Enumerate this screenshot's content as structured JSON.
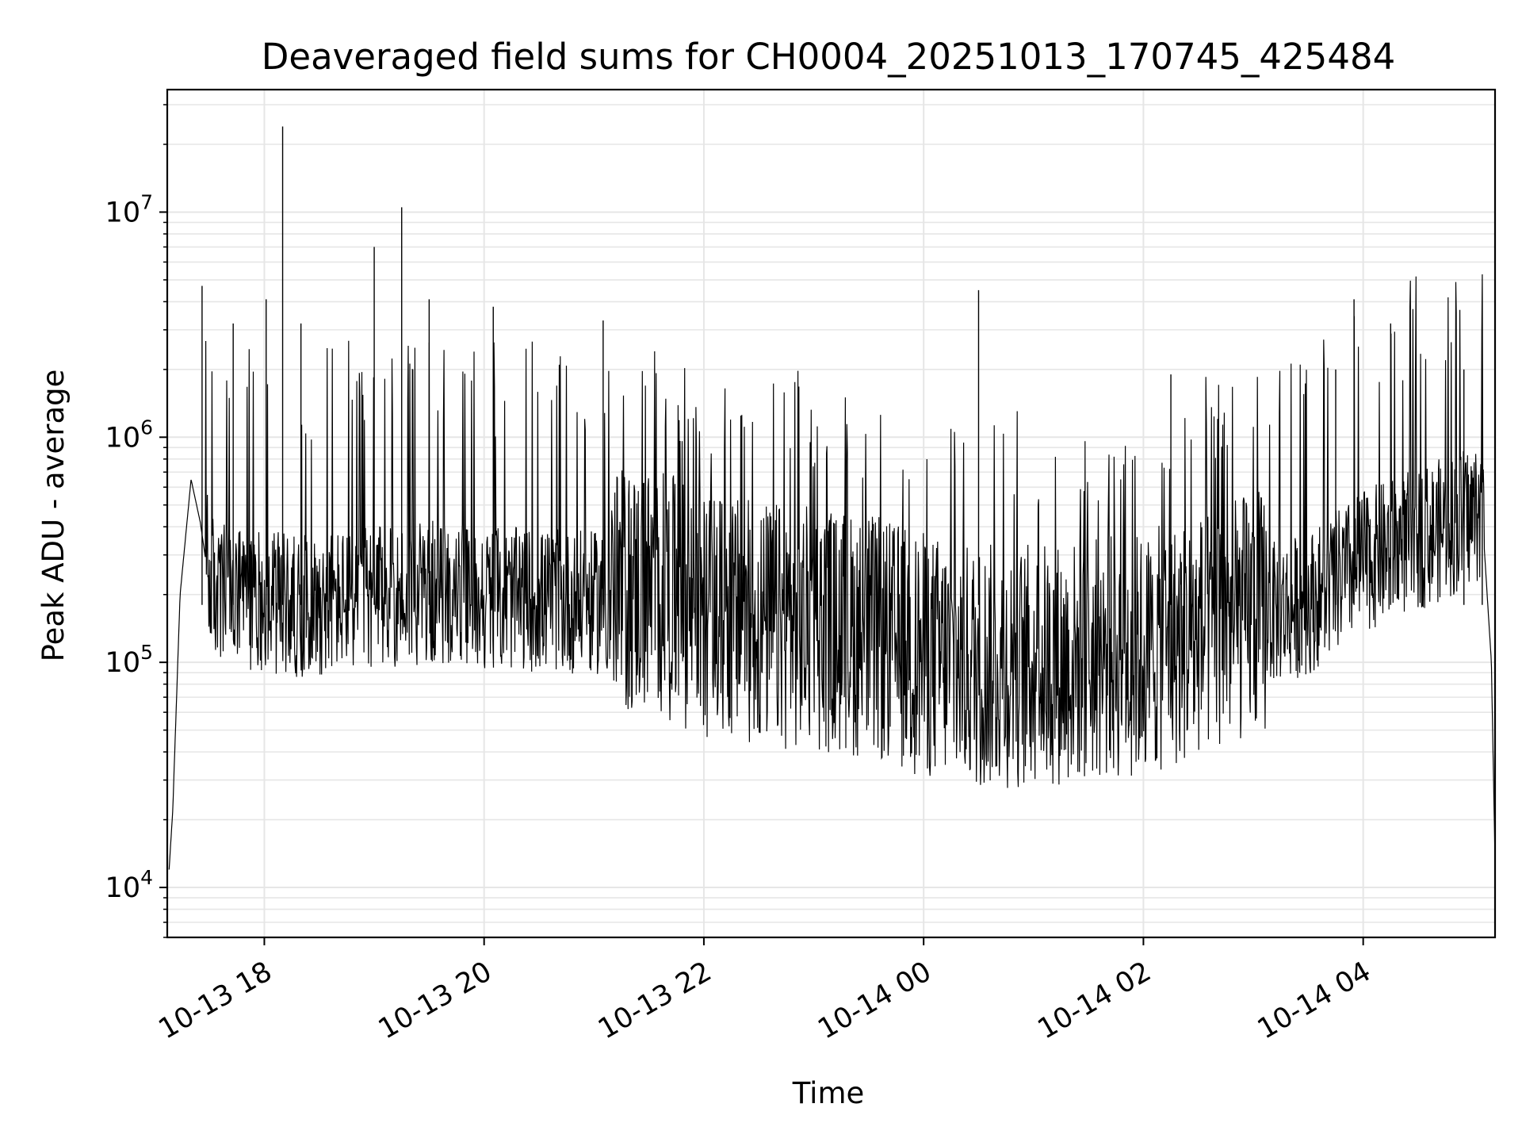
{
  "chart_data": {
    "type": "line",
    "title": "Deaveraged field sums for CH0004_20251013_170745_425484",
    "xlabel": "Time",
    "ylabel": "Peak ADU - average",
    "yscale": "log",
    "ylim": [
      6000,
      35000000
    ],
    "xlim": [
      "2025-10-13 17:07",
      "2025-10-14 05:12"
    ],
    "grid": true,
    "line_color": "#000000",
    "grid_color": "#e6e6e6",
    "x_ticks": [
      {
        "value": "2025-10-13 18:00",
        "label": "10-13 18"
      },
      {
        "value": "2025-10-13 20:00",
        "label": "10-13 20"
      },
      {
        "value": "2025-10-13 22:00",
        "label": "10-13 22"
      },
      {
        "value": "2025-10-14 00:00",
        "label": "10-14 00"
      },
      {
        "value": "2025-10-14 02:00",
        "label": "10-14 02"
      },
      {
        "value": "2025-10-14 04:00",
        "label": "10-14 04"
      }
    ],
    "y_ticks": [
      {
        "value": 10000,
        "base": "10",
        "exp": "4"
      },
      {
        "value": 100000,
        "base": "10",
        "exp": "5"
      },
      {
        "value": 1000000,
        "base": "10",
        "exp": "6"
      },
      {
        "value": 10000000,
        "base": "10",
        "exp": "7"
      }
    ],
    "series": [
      {
        "x": [
          "2025-10-13 17:08",
          "2025-10-13 17:10",
          "2025-10-13 17:14",
          "2025-10-13 17:20",
          "2025-10-13 17:25",
          "2025-10-13 17:30",
          "2025-10-13 17:35",
          "2025-10-13 17:40",
          "2025-10-13 17:45",
          "2025-10-13 17:50",
          "2025-10-13 18:00",
          "2025-10-13 18:10",
          "2025-10-13 18:20",
          "2025-10-13 18:40",
          "2025-10-13 19:00",
          "2025-10-13 19:30",
          "2025-10-13 20:00",
          "2025-10-13 20:30",
          "2025-10-13 21:00",
          "2025-10-13 21:30",
          "2025-10-13 22:00",
          "2025-10-13 22:30",
          "2025-10-13 23:00",
          "2025-10-13 23:30",
          "2025-10-14 00:00",
          "2025-10-14 00:30",
          "2025-10-14 01:00",
          "2025-10-14 01:30",
          "2025-10-14 02:00",
          "2025-10-14 02:30",
          "2025-10-14 03:00",
          "2025-10-14 03:30",
          "2025-10-14 04:00",
          "2025-10-14 04:30",
          "2025-10-14 04:50",
          "2025-10-14 05:05",
          "2025-10-14 05:10",
          "2025-10-14 05:12"
        ],
        "y": [
          12000,
          22000,
          200000,
          650000,
          420000,
          220000,
          180000,
          190000,
          170000,
          180000,
          175000,
          170000,
          165000,
          175000,
          180000,
          190000,
          180000,
          175000,
          170000,
          190000,
          145000,
          130000,
          125000,
          115000,
          95000,
          85000,
          85000,
          90000,
          95000,
          115000,
          145000,
          170000,
          260000,
          330000,
          380000,
          450000,
          100000,
          13000
        ]
      }
    ],
    "spikes": [
      {
        "x": "2025-10-13 17:26",
        "y": 4700000
      },
      {
        "x": "2025-10-13 17:43",
        "y": 3200000
      },
      {
        "x": "2025-10-13 18:01",
        "y": 4100000
      },
      {
        "x": "2025-10-13 18:10",
        "y": 24000000
      },
      {
        "x": "2025-10-13 18:20",
        "y": 3200000
      },
      {
        "x": "2025-10-13 19:00",
        "y": 7000000
      },
      {
        "x": "2025-10-13 19:15",
        "y": 10500000
      },
      {
        "x": "2025-10-13 19:30",
        "y": 4100000
      },
      {
        "x": "2025-10-13 20:05",
        "y": 3800000
      },
      {
        "x": "2025-10-13 21:05",
        "y": 3300000
      },
      {
        "x": "2025-10-14 00:30",
        "y": 4500000
      },
      {
        "x": "2025-10-14 03:55",
        "y": 4100000
      },
      {
        "x": "2025-10-14 04:15",
        "y": 3200000
      },
      {
        "x": "2025-10-14 02:15",
        "y": 1900000
      },
      {
        "x": "2025-10-14 03:45",
        "y": 2000000
      },
      {
        "x": "2025-10-14 04:55",
        "y": 2000000
      },
      {
        "x": "2025-10-14 05:05",
        "y": 2100000
      }
    ]
  }
}
